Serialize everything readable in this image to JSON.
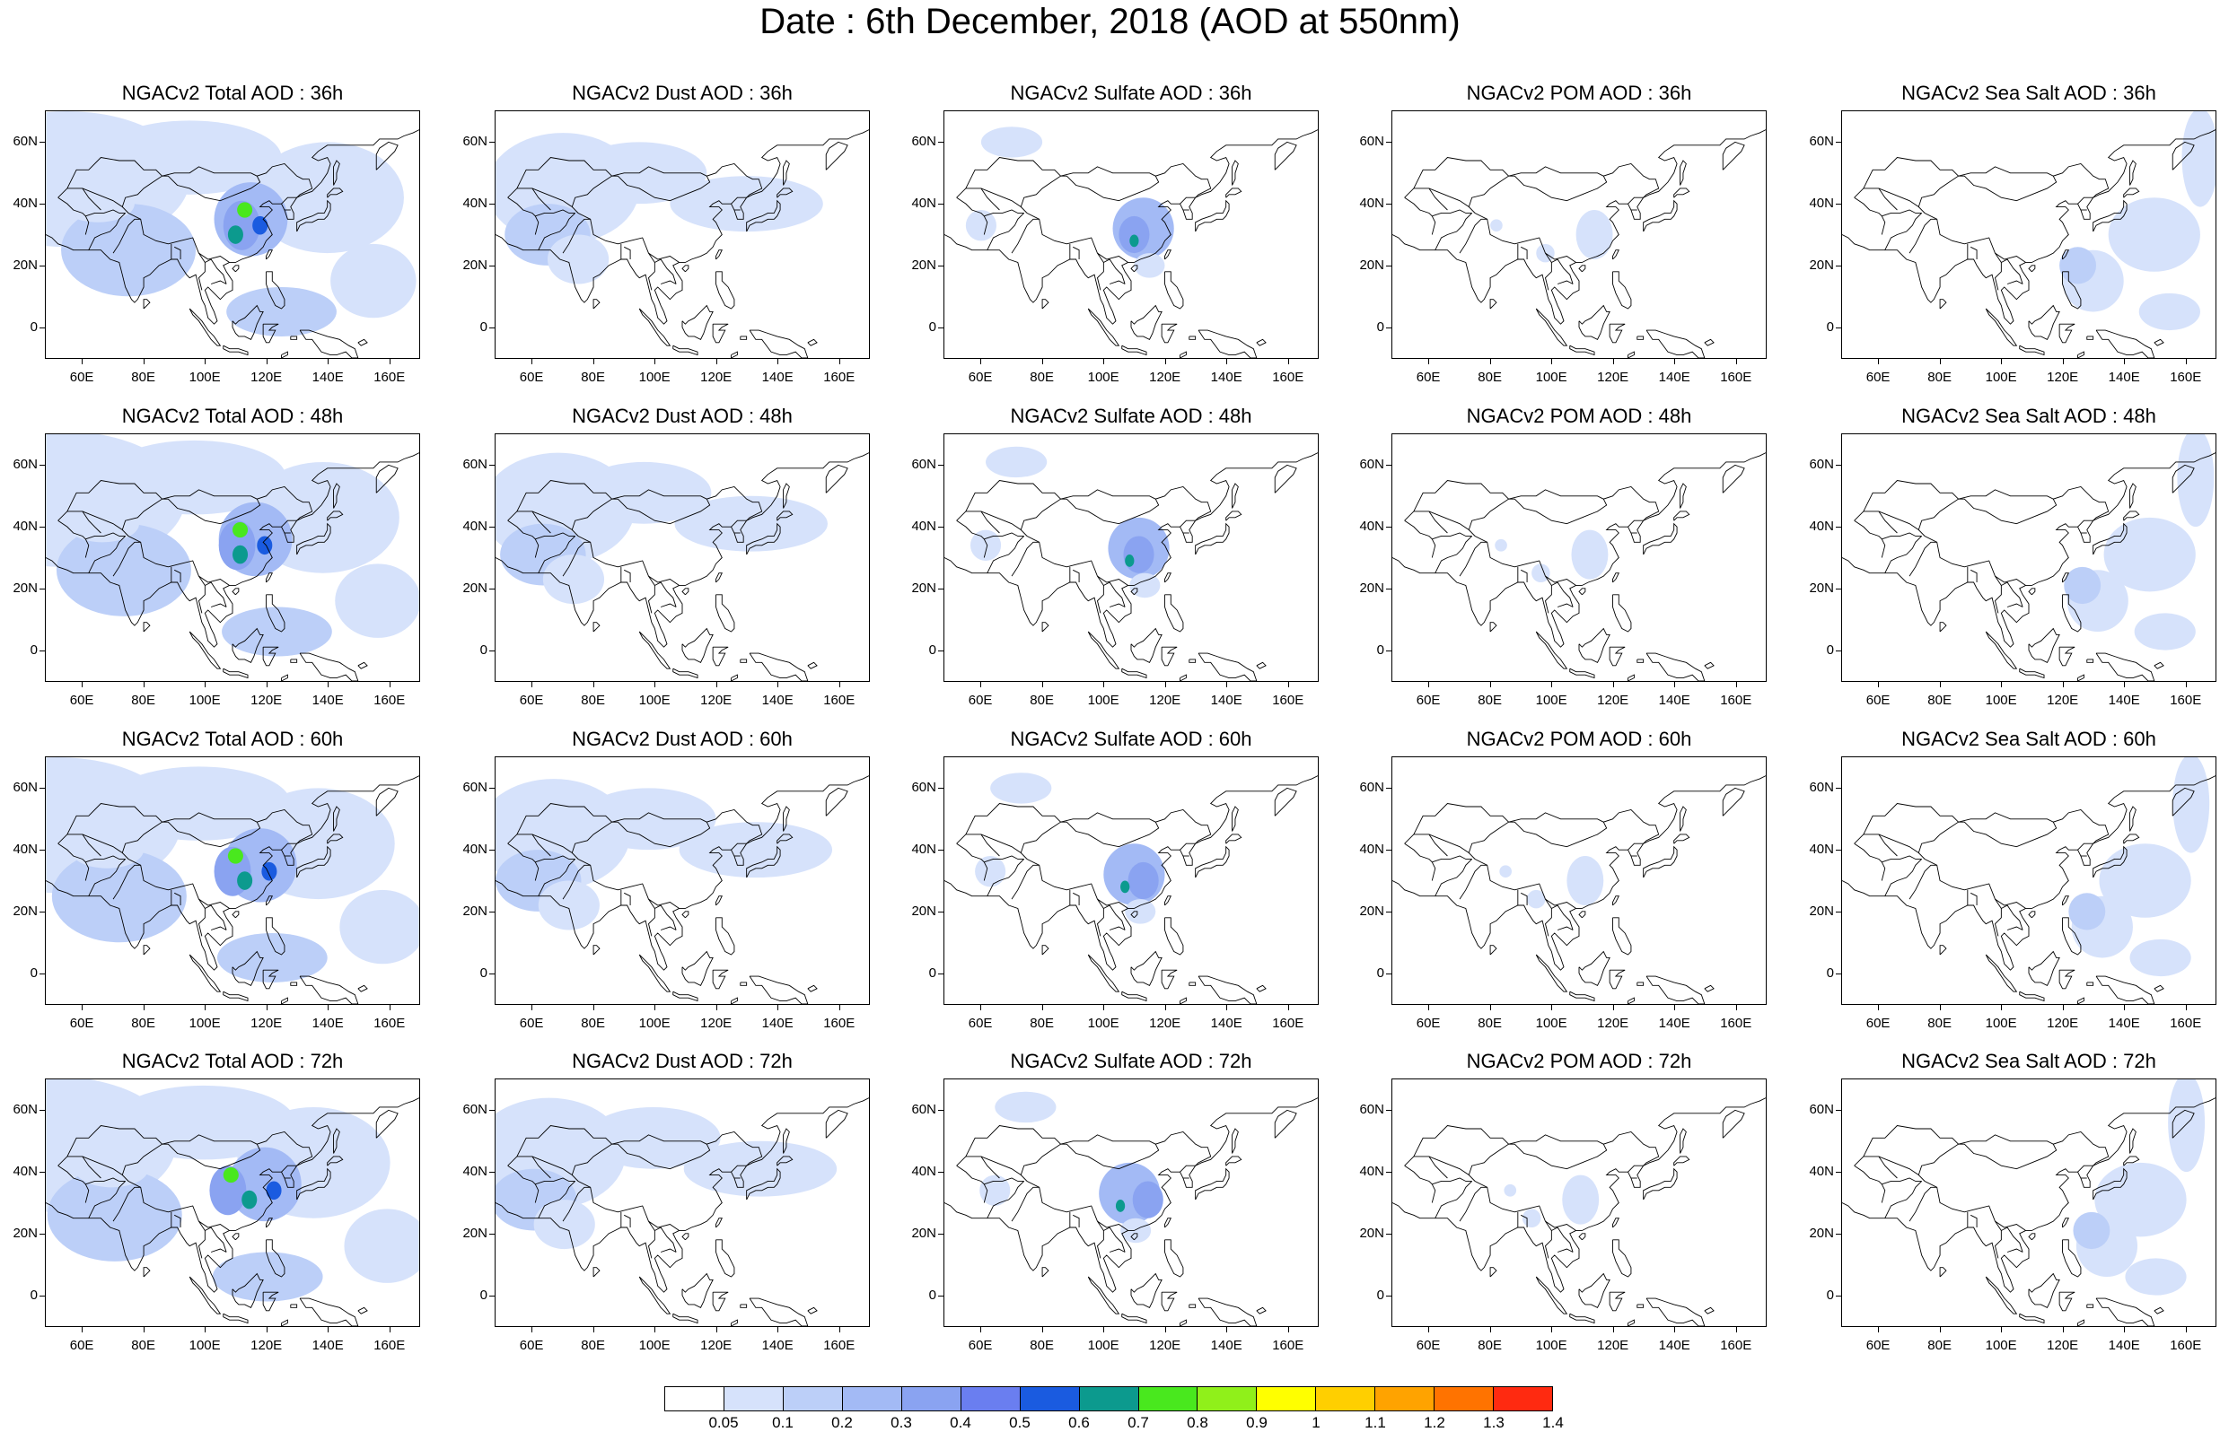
{
  "title": "Date : 6th December, 2018 (AOD at 550nm)",
  "map": {
    "lon_range": [
      48,
      170
    ],
    "lat_range": [
      -10,
      70
    ],
    "lat_ticks": [
      0,
      20,
      40,
      60
    ],
    "lat_tick_labels": [
      "0",
      "20N",
      "40N",
      "60N"
    ],
    "lon_ticks": [
      60,
      80,
      100,
      120,
      140,
      160
    ],
    "lon_tick_labels": [
      "60E",
      "80E",
      "100E",
      "120E",
      "140E",
      "160E"
    ]
  },
  "panels": [
    {
      "title": "NGACv2 Total AOD : 36h",
      "species": "total"
    },
    {
      "title": "NGACv2 Dust AOD : 36h",
      "species": "dust"
    },
    {
      "title": "NGACv2 Sulfate AOD : 36h",
      "species": "sulfate"
    },
    {
      "title": "NGACv2 POM AOD : 36h",
      "species": "pom"
    },
    {
      "title": "NGACv2 Sea Salt AOD : 36h",
      "species": "seasalt"
    },
    {
      "title": "NGACv2 Total AOD : 48h",
      "species": "total"
    },
    {
      "title": "NGACv2 Dust AOD : 48h",
      "species": "dust"
    },
    {
      "title": "NGACv2 Sulfate AOD : 48h",
      "species": "sulfate"
    },
    {
      "title": "NGACv2 POM AOD : 48h",
      "species": "pom"
    },
    {
      "title": "NGACv2 Sea Salt AOD : 48h",
      "species": "seasalt"
    },
    {
      "title": "NGACv2 Total AOD : 60h",
      "species": "total"
    },
    {
      "title": "NGACv2 Dust AOD : 60h",
      "species": "dust"
    },
    {
      "title": "NGACv2 Sulfate AOD : 60h",
      "species": "sulfate"
    },
    {
      "title": "NGACv2 POM AOD : 60h",
      "species": "pom"
    },
    {
      "title": "NGACv2 Sea Salt AOD : 60h",
      "species": "seasalt"
    },
    {
      "title": "NGACv2 Total AOD : 72h",
      "species": "total"
    },
    {
      "title": "NGACv2 Dust AOD : 72h",
      "species": "dust"
    },
    {
      "title": "NGACv2 Sulfate AOD : 72h",
      "species": "sulfate"
    },
    {
      "title": "NGACv2 POM AOD : 72h",
      "species": "pom"
    },
    {
      "title": "NGACv2 Sea Salt  AOD : 72h",
      "species": "seasalt"
    }
  ],
  "colorbar": {
    "labels": [
      "0.05",
      "0.1",
      "0.2",
      "0.3",
      "0.4",
      "0.5",
      "0.6",
      "0.7",
      "0.8",
      "0.9",
      "1",
      "1.1",
      "1.2",
      "1.3",
      "1.4"
    ],
    "colors": [
      "#ffffff",
      "#d6e2fb",
      "#bccff8",
      "#a3baf5",
      "#8aa3f1",
      "#6a7ef0",
      "#1a5be0",
      "#0c9a8e",
      "#49e81e",
      "#90f01a",
      "#ffff00",
      "#ffcf00",
      "#ffa300",
      "#ff7300",
      "#ff2a10"
    ]
  }
}
